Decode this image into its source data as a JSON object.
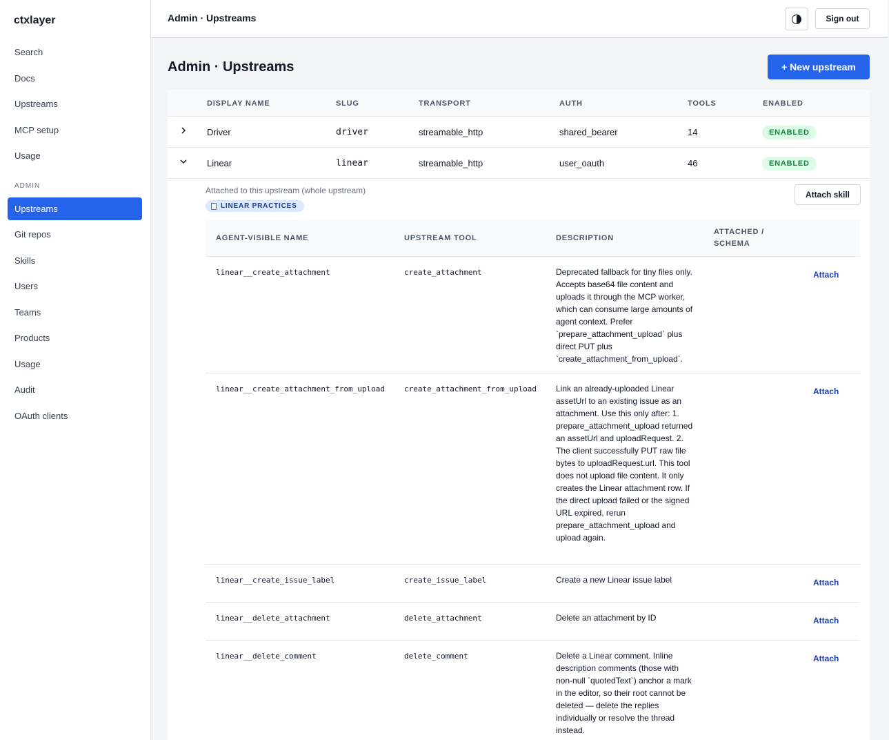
{
  "sidebar": {
    "brand": "ctxlayer",
    "main_items": [
      "Search",
      "Docs",
      "Upstreams",
      "MCP setup",
      "Usage"
    ],
    "section_label": "ADMIN",
    "admin_items": [
      "Upstreams",
      "Git repos",
      "Skills",
      "Users",
      "Teams",
      "Products",
      "Usage",
      "Audit",
      "OAuth clients"
    ],
    "active_admin_item": "Upstreams"
  },
  "topbar": {
    "title": "Admin · Upstreams",
    "theme_icon": "half-circle-icon",
    "sign_out": "Sign out"
  },
  "page": {
    "title": "Admin · Upstreams",
    "new_button": "+ New upstream"
  },
  "upstreams": {
    "columns": [
      "DISPLAY NAME",
      "SLUG",
      "TRANSPORT",
      "AUTH",
      "TOOLS",
      "ENABLED"
    ],
    "rows": [
      {
        "name": "Driver",
        "slug": "driver",
        "transport": "streamable_http",
        "auth": "shared_bearer",
        "tools": "14",
        "enabled": "ENABLED",
        "expanded": false
      },
      {
        "name": "Linear",
        "slug": "linear",
        "transport": "streamable_http",
        "auth": "user_oauth",
        "tools": "46",
        "enabled": "ENABLED",
        "expanded": true
      }
    ]
  },
  "expanded": {
    "attached_label": "Attached to this upstream (whole upstream)",
    "skill_chip": "LINEAR PRACTICES",
    "attach_skill": "Attach skill",
    "columns": [
      "AGENT-VISIBLE NAME",
      "UPSTREAM TOOL",
      "DESCRIPTION",
      "ATTACHED /",
      "SCHEMA"
    ],
    "tools": [
      {
        "name": "linear__create_attachment",
        "tool": "create_attachment",
        "description": "Deprecated fallback for tiny files only. Accepts base64 file content and uploads it through the MCP worker, which can consume large amounts of agent context. Prefer `prepare_attachment_upload` plus direct PUT plus `create_attachment_from_upload`.",
        "action": "Attach"
      },
      {
        "name": "linear__create_attachment_from_upload",
        "tool": "create_attachment_from_upload",
        "description": "Link an already-uploaded Linear assetUrl to an existing issue as an attachment. Use this only after: 1. prepare_attachment_upload returned an assetUrl and uploadRequest. 2. The client successfully PUT raw file bytes to uploadRequest.url. This tool does not upload file content. It only creates the Linear attachment row. If the direct upload failed or the signed URL expired, rerun prepare_attachment_upload and upload again.",
        "action": "Attach"
      },
      {
        "name": "linear__create_issue_label",
        "tool": "create_issue_label",
        "description": "Create a new Linear issue label",
        "action": "Attach"
      },
      {
        "name": "linear__delete_attachment",
        "tool": "delete_attachment",
        "description": "Delete an attachment by ID",
        "action": "Attach"
      },
      {
        "name": "linear__delete_comment",
        "tool": "delete_comment",
        "description": "Delete a Linear comment. Inline description comments (those with non-null `quotedText`) anchor a mark in the editor, so their root cannot be deleted — delete the replies individually or resolve the thread instead.",
        "action": "Attach"
      }
    ]
  },
  "colors": {
    "accent": "#2563eb",
    "badge_bg": "#dcfce7",
    "badge_text": "#15803d",
    "chip_bg": "#dbeafe",
    "link": "#1e40af"
  }
}
